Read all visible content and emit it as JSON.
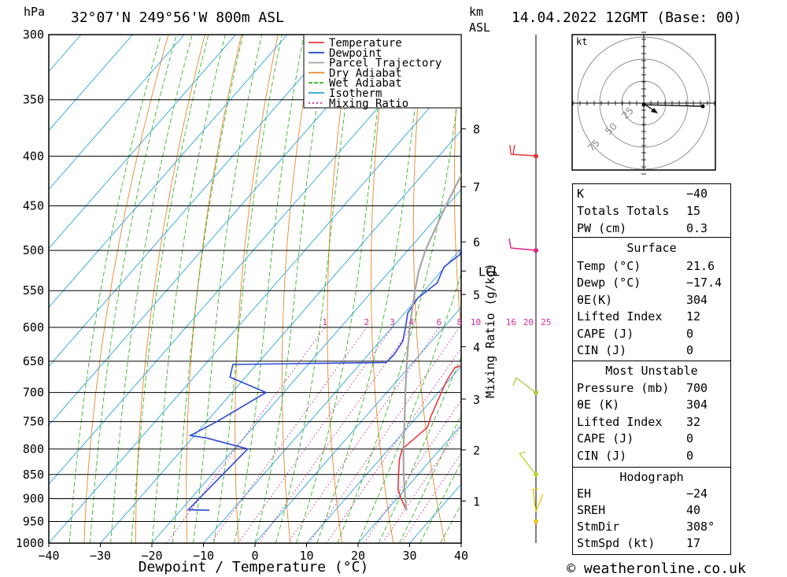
{
  "header": {
    "location": "32°07'N 249°56'W 800m ASL",
    "datetime": "14.04.2022 12GMT (Base: 00)",
    "hpa_label": "hPa",
    "km_label": "km",
    "asl_label": "ASL"
  },
  "footer": {
    "copyright": "© weatheronline.co.uk"
  },
  "chart_data": {
    "type": "skew-t",
    "xlabel": "Dewpoint / Temperature (°C)",
    "ylabel_left": "hPa",
    "ylabel_right": "Mixing Ratio (g/kg)",
    "xlim": [
      -40,
      40
    ],
    "ylim": [
      1000,
      300
    ],
    "x_ticks": [
      "-40",
      "-30",
      "-20",
      "-10",
      "0",
      "10",
      "20",
      "30",
      "40"
    ],
    "pressure_levels": [
      300,
      350,
      400,
      450,
      500,
      550,
      600,
      650,
      700,
      750,
      800,
      850,
      900,
      950,
      1000
    ],
    "pressure_labels": [
      "300",
      "350",
      "400",
      "450",
      "500",
      "550",
      "600",
      "650",
      "700",
      "750",
      "800",
      "850",
      "900",
      "950",
      "1000"
    ],
    "km_ticks": [
      {
        "label": "1",
        "p": 905
      },
      {
        "label": "2",
        "p": 802
      },
      {
        "label": "3",
        "p": 711
      },
      {
        "label": "4",
        "p": 628
      },
      {
        "label": "5",
        "p": 555
      },
      {
        "label": "6",
        "p": 490
      },
      {
        "label": "7",
        "p": 430
      },
      {
        "label": "8",
        "p": 375
      }
    ],
    "lcl": {
      "label": "LCL",
      "p": 525
    },
    "mixing_ratio_labels": [
      "1",
      "2",
      "3",
      "4",
      "6",
      "8",
      "10",
      "16",
      "20",
      "25"
    ],
    "mixing_ratio_values": [
      1,
      2,
      3,
      4,
      6,
      8,
      10,
      16,
      20,
      25
    ],
    "legend": {
      "position": "top-right",
      "items": [
        {
          "name": "Temperature",
          "color": "#e8393c"
        },
        {
          "name": "Dewpoint",
          "color": "#2c48d8"
        },
        {
          "name": "Parcel Trajectory",
          "color": "#a5a5a5"
        },
        {
          "name": "Dry Adiabat",
          "color": "#e6882b"
        },
        {
          "name": "Wet Adiabat",
          "color": "#3cb52b"
        },
        {
          "name": "Isotherm",
          "color": "#2aa5e0"
        },
        {
          "name": "Mixing Ratio",
          "color": "#d22b9c"
        }
      ]
    },
    "series": [
      {
        "name": "Temperature",
        "points": [
          [
            925,
            23.8
          ],
          [
            910,
            22.0
          ],
          [
            900,
            20.8
          ],
          [
            880,
            18.6
          ],
          [
            850,
            16.2
          ],
          [
            820,
            13.8
          ],
          [
            800,
            12.6
          ],
          [
            780,
            13.2
          ],
          [
            760,
            13.8
          ],
          [
            740,
            12.6
          ],
          [
            700,
            10.6
          ],
          [
            680,
            9.6
          ],
          [
            660,
            9.0
          ],
          [
            655,
            10.4
          ],
          [
            640,
            10.8
          ],
          [
            600,
            9.6
          ],
          [
            560,
            8.0
          ],
          [
            520,
            6.2
          ],
          [
            500,
            5.0
          ],
          [
            470,
            3.4
          ],
          [
            450,
            3.2
          ],
          [
            420,
            2.4
          ],
          [
            400,
            2.0
          ],
          [
            380,
            0.8
          ],
          [
            360,
            0.4
          ],
          [
            340,
            -0.8
          ],
          [
            320,
            -2.4
          ],
          [
            300,
            -4.2
          ]
        ]
      },
      {
        "name": "Dewpoint",
        "points": [
          [
            925,
            -14.4
          ],
          [
            924,
            -18.6
          ],
          [
            900,
            -18.4
          ],
          [
            800,
            -17.4
          ],
          [
            780,
            -27.0
          ],
          [
            775,
            -30.8
          ],
          [
            750,
            -28.0
          ],
          [
            700,
            -23.4
          ],
          [
            675,
            -33.0
          ],
          [
            655,
            -34.6
          ],
          [
            653,
            -15.0
          ],
          [
            652,
            -5.2
          ],
          [
            640,
            -5.0
          ],
          [
            620,
            -5.6
          ],
          [
            600,
            -7.4
          ],
          [
            580,
            -9.4
          ],
          [
            560,
            -10.0
          ],
          [
            540,
            -8.8
          ],
          [
            520,
            -10.2
          ],
          [
            505,
            -9.2
          ],
          [
            490,
            -10.8
          ],
          [
            470,
            -7.8
          ],
          [
            455,
            -9.6
          ],
          [
            450,
            -12.4
          ],
          [
            430,
            -12.4
          ],
          [
            420,
            -12.2
          ],
          [
            410,
            -14.2
          ],
          [
            400,
            -14.4
          ],
          [
            390,
            -14.0
          ],
          [
            380,
            -14.6
          ],
          [
            370,
            -18.6
          ],
          [
            355,
            -25.0
          ],
          [
            350,
            -25.6
          ],
          [
            320,
            -24.4
          ],
          [
            300,
            -24.6
          ]
        ]
      },
      {
        "name": "Parcel Trajectory",
        "points": [
          [
            925,
            23.8
          ],
          [
            900,
            21.6
          ],
          [
            850,
            17.2
          ],
          [
            800,
            12.8
          ],
          [
            750,
            8.4
          ],
          [
            700,
            3.6
          ],
          [
            650,
            -1.4
          ],
          [
            600,
            -6.6
          ],
          [
            550,
            -11.8
          ],
          [
            525,
            -14.4
          ],
          [
            500,
            -16.6
          ],
          [
            450,
            -20.2
          ],
          [
            400,
            -23.8
          ],
          [
            350,
            -27.6
          ],
          [
            300,
            -31.8
          ]
        ]
      }
    ],
    "wind_barbs": [
      {
        "p": 950,
        "color": "#e8c91c"
      },
      {
        "p": 850,
        "color": "#b8d62b"
      },
      {
        "p": 700,
        "color": "#a5d23c"
      },
      {
        "p": 500,
        "color": "#e0208f"
      },
      {
        "p": 400,
        "color": "#e8393c"
      }
    ],
    "hodograph": {
      "unit": "kt",
      "ring_labels": [
        "25",
        "50",
        "75"
      ]
    }
  },
  "stats": {
    "index": [
      {
        "label": "K",
        "value": "−40"
      },
      {
        "label": "Totals Totals",
        "value": "15"
      },
      {
        "label": "PW (cm)",
        "value": "0.3"
      }
    ],
    "surface": {
      "title": "Surface",
      "rows": [
        {
          "label": "Temp (°C)",
          "value": "21.6"
        },
        {
          "label": "Dewp (°C)",
          "value": "−17.4"
        },
        {
          "label": "θE(K)",
          "value": "304"
        },
        {
          "label": "Lifted Index",
          "value": "12"
        },
        {
          "label": "CAPE (J)",
          "value": "0"
        },
        {
          "label": "CIN (J)",
          "value": "0"
        }
      ]
    },
    "most_unstable": {
      "title": "Most Unstable",
      "rows": [
        {
          "label": "Pressure (mb)",
          "value": "700"
        },
        {
          "label": "θE (K)",
          "value": "304"
        },
        {
          "label": "Lifted Index",
          "value": "32"
        },
        {
          "label": "CAPE (J)",
          "value": "0"
        },
        {
          "label": "CIN (J)",
          "value": "0"
        }
      ]
    },
    "hodograph": {
      "title": "Hodograph",
      "rows": [
        {
          "label": "EH",
          "value": "−24"
        },
        {
          "label": "SREH",
          "value": "40"
        },
        {
          "label": "StmDir",
          "value": "308°"
        },
        {
          "label": "StmSpd (kt)",
          "value": "17"
        }
      ]
    }
  }
}
